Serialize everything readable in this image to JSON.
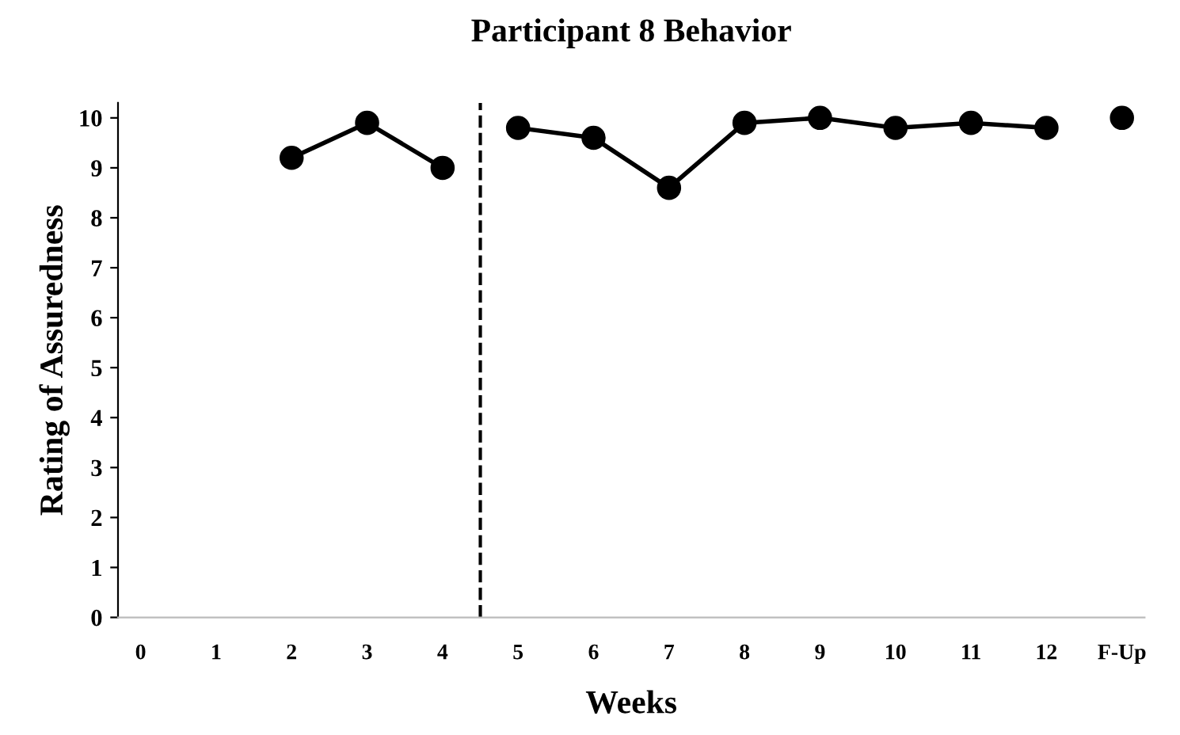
{
  "chart_data": {
    "type": "line",
    "title": "Participant 8 Behavior",
    "xlabel": "Weeks",
    "ylabel": "Rating of Assuredness",
    "categories": [
      "0",
      "1",
      "2",
      "3",
      "4",
      "5",
      "6",
      "7",
      "8",
      "9",
      "10",
      "11",
      "12",
      "F-Up"
    ],
    "series": [
      {
        "color": "#000000",
        "values": [
          null,
          null,
          9.2,
          9.9,
          9.0,
          null,
          null,
          null,
          null,
          null,
          null,
          null,
          null,
          null
        ]
      },
      {
        "color": "#000000",
        "values": [
          null,
          null,
          null,
          null,
          null,
          9.8,
          9.6,
          8.6,
          9.9,
          10.0,
          9.8,
          9.9,
          9.8,
          null
        ]
      },
      {
        "type": "scatter",
        "color": "#000000",
        "values": [
          null,
          null,
          null,
          null,
          null,
          null,
          null,
          null,
          null,
          null,
          null,
          null,
          null,
          10.0
        ]
      }
    ],
    "ylim": [
      0,
      10.3
    ],
    "yticks": [
      0,
      1,
      2,
      3,
      4,
      5,
      6,
      7,
      8,
      9,
      10
    ],
    "marker": "circle",
    "line_style": "solid",
    "grid": false,
    "legend": false
  }
}
